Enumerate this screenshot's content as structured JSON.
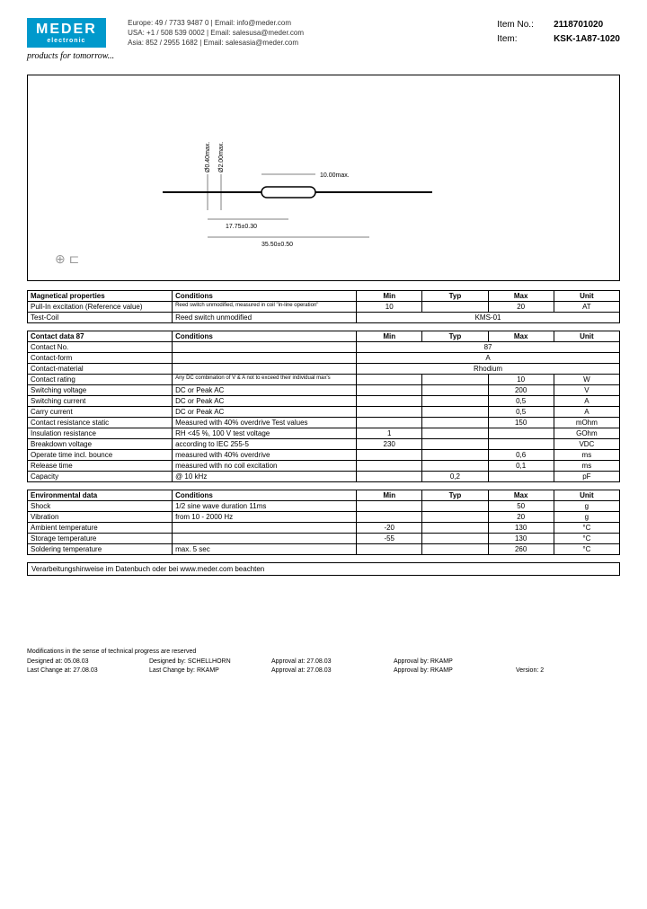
{
  "logo": {
    "main": "MEDER",
    "sub": "electronic",
    "tagline": "products for tomorrow..."
  },
  "contact": {
    "europe": "Europe: 49 / 7733 9487 0 | Email: info@meder.com",
    "usa": "USA: +1 / 508 539 0002 | Email: salesusa@meder.com",
    "asia": "Asia: 852 / 2955 1682 | Email: salesasia@meder.com"
  },
  "item": {
    "no_label": "Item No.:",
    "no_value": "2118701020",
    "name_label": "Item:",
    "name_value": "KSK-1A87-1020"
  },
  "drawing": {
    "dim_diam1": "Ø0.40max.",
    "dim_diam2": "Ø2.00max.",
    "dim_body": "10.00max.",
    "dim_lead": "17.75±0.30",
    "dim_total": "35.50±0.50"
  },
  "table1": {
    "title": "Magnetical properties",
    "headers": [
      "Conditions",
      "Min",
      "Typ",
      "Max",
      "Unit"
    ],
    "rows": [
      {
        "prop": "Pull-In excitation (Reference value)",
        "cond": "Reed switch unmodified, measured in coil \"in-line operation\"",
        "min": "10",
        "typ": "",
        "max": "20",
        "unit": "AT"
      },
      {
        "prop": "Test-Coil",
        "cond": "Reed switch unmodified",
        "span": "KMS-01"
      }
    ]
  },
  "table2": {
    "title": "Contact data 87",
    "headers": [
      "Conditions",
      "Min",
      "Typ",
      "Max",
      "Unit"
    ],
    "rows": [
      {
        "prop": "Contact No.",
        "cond": "",
        "span": "87"
      },
      {
        "prop": "Contact-form",
        "cond": "",
        "span": "A"
      },
      {
        "prop": "Contact-material",
        "cond": "",
        "span": "Rhodium"
      },
      {
        "prop": "Contact rating",
        "cond": "Any DC combination of V & A not to exceed their individual max's",
        "min": "",
        "typ": "",
        "max": "10",
        "unit": "W"
      },
      {
        "prop": "Switching voltage",
        "cond": "DC or Peak AC",
        "min": "",
        "typ": "",
        "max": "200",
        "unit": "V"
      },
      {
        "prop": "Switching current",
        "cond": "DC or Peak AC",
        "min": "",
        "typ": "",
        "max": "0,5",
        "unit": "A"
      },
      {
        "prop": "Carry current",
        "cond": "DC or Peak AC",
        "min": "",
        "typ": "",
        "max": "0,5",
        "unit": "A"
      },
      {
        "prop": "Contact resistance static",
        "cond": "Measured with 40% overdrive Test values",
        "min": "",
        "typ": "",
        "max": "150",
        "unit": "mOhm"
      },
      {
        "prop": "Insulation resistance",
        "cond": "RH <45 %, 100 V test voltage",
        "min": "1",
        "typ": "",
        "max": "",
        "unit": "GOhm"
      },
      {
        "prop": "Breakdown voltage",
        "cond": "according to IEC 255-5",
        "min": "230",
        "typ": "",
        "max": "",
        "unit": "VDC"
      },
      {
        "prop": "Operate time incl. bounce",
        "cond": "measured with 40% overdrive",
        "min": "",
        "typ": "",
        "max": "0,6",
        "unit": "ms"
      },
      {
        "prop": "Release time",
        "cond": "measured with no coil excitation",
        "min": "",
        "typ": "",
        "max": "0,1",
        "unit": "ms"
      },
      {
        "prop": "Capacity",
        "cond": "@ 10 kHz",
        "min": "",
        "typ": "0,2",
        "max": "",
        "unit": "pF"
      }
    ]
  },
  "table3": {
    "title": "Environmental data",
    "headers": [
      "Conditions",
      "Min",
      "Typ",
      "Max",
      "Unit"
    ],
    "rows": [
      {
        "prop": "Shock",
        "cond": "1/2 sine wave duration 11ms",
        "min": "",
        "typ": "",
        "max": "50",
        "unit": "g"
      },
      {
        "prop": "Vibration",
        "cond": "from 10 - 2000 Hz",
        "min": "",
        "typ": "",
        "max": "20",
        "unit": "g"
      },
      {
        "prop": "Ambient temperature",
        "cond": "",
        "min": "-20",
        "typ": "",
        "max": "130",
        "unit": "°C"
      },
      {
        "prop": "Storage temperature",
        "cond": "",
        "min": "-55",
        "typ": "",
        "max": "130",
        "unit": "°C"
      },
      {
        "prop": "Soldering temperature",
        "cond": "max. 5 sec",
        "min": "",
        "typ": "",
        "max": "260",
        "unit": "°C"
      }
    ]
  },
  "note": "Verarbeitungshinweise im Datenbuch oder bei www.meder.com beachten",
  "footer": {
    "mod": "Modifications in the sense of technical progress are reserved",
    "row1": {
      "a": "Designed at:",
      "av": "05.08.03",
      "b": "Designed by:",
      "bv": "SCHELLHORN",
      "c": "Approval at:",
      "cv": "27.08.03",
      "d": "Approval by:",
      "dv": "RKAMP"
    },
    "row2": {
      "a": "Last Change at:",
      "av": "27.08.03",
      "b": "Last Change by:",
      "bv": "RKAMP",
      "c": "Approval at:",
      "cv": "27.08.03",
      "d": "Approval by:",
      "dv": "RKAMP",
      "e": "Version:",
      "ev": "2"
    }
  }
}
